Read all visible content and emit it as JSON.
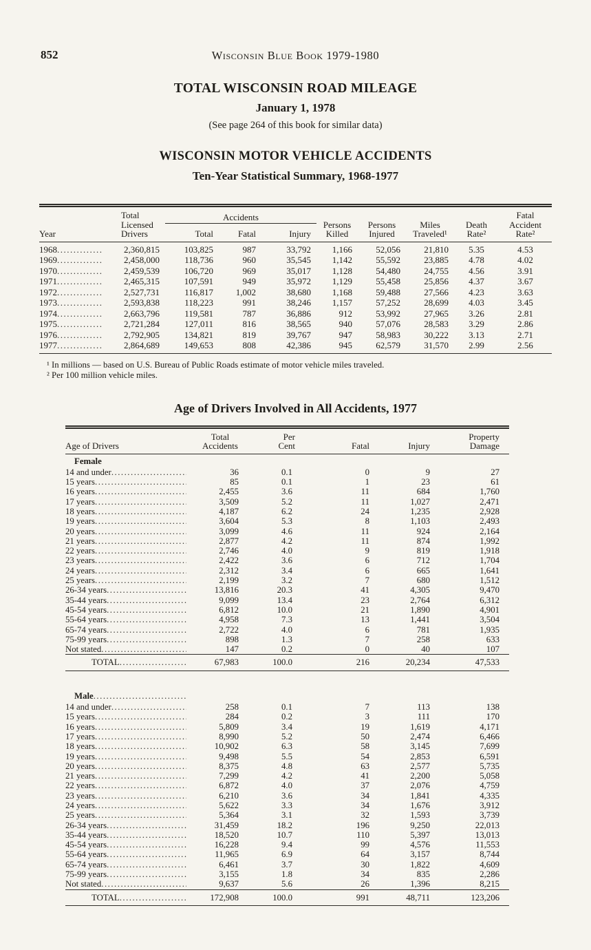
{
  "theme": {
    "paper": "#f6f4ee",
    "ink": "#1e1c18",
    "rule": "#2e2c28"
  },
  "page": {
    "number": "852",
    "running_title": "Wisconsin Blue Book 1979-1980"
  },
  "mileage_section": {
    "title": "TOTAL WISCONSIN ROAD MILEAGE",
    "subtitle": "January 1, 1978",
    "note": "(See page 264 of this book for similar data)"
  },
  "accidents_section": {
    "title": "WISCONSIN MOTOR VEHICLE ACCIDENTS",
    "subtitle": "Ten-Year Statistical Summary, 1968-1977"
  },
  "ten_year_table": {
    "headers": {
      "year": "Year",
      "drivers": "Total\nLicensed\nDrivers",
      "accidents_group": "Accidents",
      "accidents_total": "Total",
      "accidents_fatal": "Fatal",
      "accidents_injury": "Injury",
      "persons_killed": "Persons\nKilled",
      "persons_injured": "Persons\nInjured",
      "miles_traveled": "Miles\nTraveled¹",
      "death_rate": "Death\nRate²",
      "fatal_accident_rate": "Fatal\nAccident\nRate²"
    },
    "rows": [
      [
        "1968",
        "2,360,815",
        "103,825",
        "987",
        "33,792",
        "1,166",
        "52,056",
        "21,810",
        "5.35",
        "4.53"
      ],
      [
        "1969",
        "2,458,000",
        "118,736",
        "960",
        "35,545",
        "1,142",
        "55,592",
        "23,885",
        "4.78",
        "4.02"
      ],
      [
        "1970",
        "2,459,539",
        "106,720",
        "969",
        "35,017",
        "1,128",
        "54,480",
        "24,755",
        "4.56",
        "3.91"
      ],
      [
        "1971",
        "2,465,315",
        "107,591",
        "949",
        "35,972",
        "1,129",
        "55,458",
        "25,856",
        "4.37",
        "3.67"
      ],
      [
        "1972",
        "2,527,731",
        "116,817",
        "1,002",
        "38,680",
        "1,168",
        "59,488",
        "27,566",
        "4.23",
        "3.63"
      ],
      [
        "1973",
        "2,593,838",
        "118,223",
        "991",
        "38,246",
        "1,157",
        "57,252",
        "28,699",
        "4.03",
        "3.45"
      ],
      [
        "1974",
        "2,663,796",
        "119,581",
        "787",
        "36,886",
        "912",
        "53,992",
        "27,965",
        "3.26",
        "2.81"
      ],
      [
        "1975",
        "2,721,284",
        "127,011",
        "816",
        "38,565",
        "940",
        "57,076",
        "28,583",
        "3.29",
        "2.86"
      ],
      [
        "1976",
        "2,792,905",
        "134,821",
        "819",
        "39,767",
        "947",
        "58,983",
        "30,222",
        "3.13",
        "2.71"
      ],
      [
        "1977",
        "2,864,689",
        "149,653",
        "808",
        "42,386",
        "945",
        "62,579",
        "31,570",
        "2.99",
        "2.56"
      ]
    ],
    "footnotes": [
      "¹ In millions — based on U.S. Bureau of Public Roads estimate of motor vehicle miles traveled.",
      "² Per 100 million vehicle miles."
    ]
  },
  "age_section": {
    "title": "Age of Drivers Involved in All Accidents, 1977"
  },
  "age_table": {
    "headers": {
      "age": "Age of Drivers",
      "total_accidents": "Total\nAccidents",
      "per_cent": "Per\nCent",
      "fatal": "Fatal",
      "injury": "Injury",
      "property_damage": "Property\nDamage"
    },
    "female": {
      "label": "Female",
      "rows": [
        [
          "14 and under",
          "36",
          "0.1",
          "0",
          "9",
          "27"
        ],
        [
          "15 years",
          "85",
          "0.1",
          "1",
          "23",
          "61"
        ],
        [
          "16 years",
          "2,455",
          "3.6",
          "11",
          "684",
          "1,760"
        ],
        [
          "17 years",
          "3,509",
          "5.2",
          "11",
          "1,027",
          "2,471"
        ],
        [
          "18 years",
          "4,187",
          "6.2",
          "24",
          "1,235",
          "2,928"
        ],
        [
          "19 years",
          "3,604",
          "5.3",
          "8",
          "1,103",
          "2,493"
        ],
        [
          "20 years",
          "3,099",
          "4.6",
          "11",
          "924",
          "2,164"
        ],
        [
          "21 years",
          "2,877",
          "4.2",
          "11",
          "874",
          "1,992"
        ],
        [
          "22 years",
          "2,746",
          "4.0",
          "9",
          "819",
          "1,918"
        ],
        [
          "23 years",
          "2,422",
          "3.6",
          "6",
          "712",
          "1,704"
        ],
        [
          "24 years",
          "2,312",
          "3.4",
          "6",
          "665",
          "1,641"
        ],
        [
          "25 years",
          "2,199",
          "3.2",
          "7",
          "680",
          "1,512"
        ],
        [
          "26-34 years",
          "13,816",
          "20.3",
          "41",
          "4,305",
          "9,470"
        ],
        [
          "35-44 years",
          "9,099",
          "13.4",
          "23",
          "2,764",
          "6,312"
        ],
        [
          "45-54 years",
          "6,812",
          "10.0",
          "21",
          "1,890",
          "4,901"
        ],
        [
          "55-64 years",
          "4,958",
          "7.3",
          "13",
          "1,441",
          "3,504"
        ],
        [
          "65-74 years",
          "2,722",
          "4.0",
          "6",
          "781",
          "1,935"
        ],
        [
          "75-99 years",
          "898",
          "1.3",
          "7",
          "258",
          "633"
        ],
        [
          "Not stated",
          "147",
          "0.2",
          "0",
          "40",
          "107"
        ]
      ],
      "total": [
        "TOTAL",
        "67,983",
        "100.0",
        "216",
        "20,234",
        "47,533"
      ]
    },
    "male": {
      "label": "Male",
      "rows": [
        [
          "14 and under",
          "258",
          "0.1",
          "7",
          "113",
          "138"
        ],
        [
          "15 years",
          "284",
          "0.2",
          "3",
          "111",
          "170"
        ],
        [
          "16 years",
          "5,809",
          "3.4",
          "19",
          "1,619",
          "4,171"
        ],
        [
          "17 years",
          "8,990",
          "5.2",
          "50",
          "2,474",
          "6,466"
        ],
        [
          "18 years",
          "10,902",
          "6.3",
          "58",
          "3,145",
          "7,699"
        ],
        [
          "19 years",
          "9,498",
          "5.5",
          "54",
          "2,853",
          "6,591"
        ],
        [
          "20 years",
          "8,375",
          "4.8",
          "63",
          "2,577",
          "5,735"
        ],
        [
          "21 years",
          "7,299",
          "4.2",
          "41",
          "2,200",
          "5,058"
        ],
        [
          "22 years",
          "6,872",
          "4.0",
          "37",
          "2,076",
          "4,759"
        ],
        [
          "23 years",
          "6,210",
          "3.6",
          "34",
          "1,841",
          "4,335"
        ],
        [
          "24 years",
          "5,622",
          "3.3",
          "34",
          "1,676",
          "3,912"
        ],
        [
          "25 years",
          "5,364",
          "3.1",
          "32",
          "1,593",
          "3,739"
        ],
        [
          "26-34 years",
          "31,459",
          "18.2",
          "196",
          "9,250",
          "22,013"
        ],
        [
          "35-44 years",
          "18,520",
          "10.7",
          "110",
          "5,397",
          "13,013"
        ],
        [
          "45-54 years",
          "16,228",
          "9.4",
          "99",
          "4,576",
          "11,553"
        ],
        [
          "55-64 years",
          "11,965",
          "6.9",
          "64",
          "3,157",
          "8,744"
        ],
        [
          "65-74 years",
          "6,461",
          "3.7",
          "30",
          "1,822",
          "4,609"
        ],
        [
          "75-99 years",
          "3,155",
          "1.8",
          "34",
          "835",
          "2,286"
        ],
        [
          "Not stated",
          "9,637",
          "5.6",
          "26",
          "1,396",
          "8,215"
        ]
      ],
      "total": [
        "TOTAL",
        "172,908",
        "100.0",
        "991",
        "48,711",
        "123,206"
      ]
    }
  }
}
